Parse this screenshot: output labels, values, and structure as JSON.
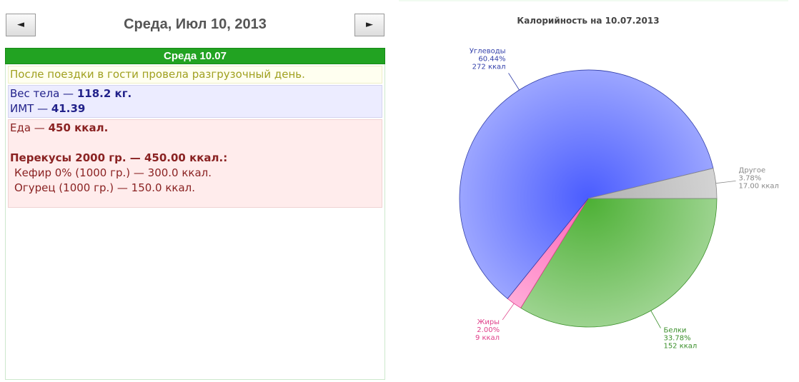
{
  "header": {
    "prev_button": "◄",
    "title": "Среда, Июл 10, 2013",
    "next_button": "►"
  },
  "day": {
    "title": "Среда 10.07",
    "note": "После поездки в гости провела разгрузочный день.",
    "weight": {
      "label": "Вес тела —",
      "value": "118.2 кг."
    },
    "bmi": {
      "label": "ИМТ —",
      "value": "41.39"
    },
    "food": {
      "label": "Еда —",
      "value": "450 ккал."
    },
    "snacks": {
      "title": "Перекусы 2000 гр. — 450.00 ккал.:",
      "items": [
        "Кефир 0% (1000 гр.) — 300.0 ккал.",
        "Огурец (1000 гр.) — 150.0 ккал."
      ]
    }
  },
  "chart_data": {
    "type": "pie",
    "title": "Калорийность на 10.07.2013",
    "categories": [
      "Белки",
      "Жиры",
      "Углеводы",
      "Другое"
    ],
    "values": [
      33.78,
      2.0,
      60.44,
      3.78
    ],
    "value_labels": [
      "33.78%",
      "2.00%",
      "60.44%",
      "3.78%"
    ],
    "kcal_labels": [
      "152 ккал",
      "9 ккал",
      "272 ккал",
      "17.00 ккал"
    ],
    "colors": [
      "#4cb034",
      "#ff66b8",
      "#4a5cff",
      "#b0b0b0"
    ],
    "label_colors": [
      "#3a8f2a",
      "#e0408a",
      "#3340aa",
      "#888888"
    ]
  }
}
